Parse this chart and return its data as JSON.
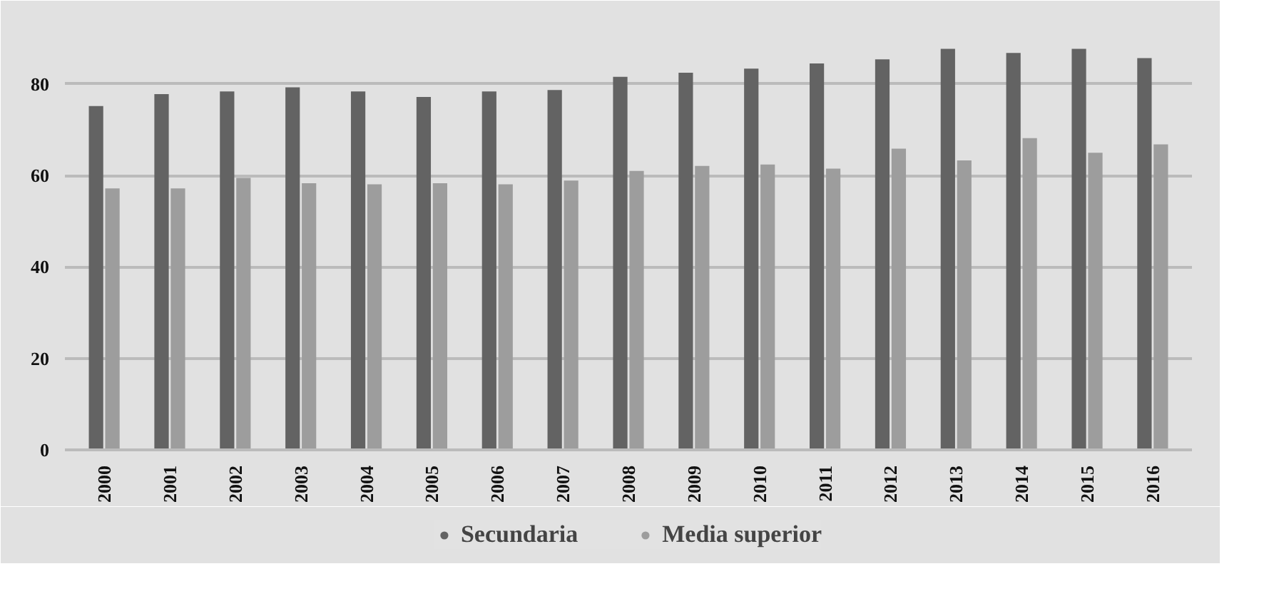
{
  "chart_data": {
    "type": "bar",
    "categories": [
      "2000",
      "2001",
      "2002",
      "2003",
      "2004",
      "2005",
      "2006",
      "2007",
      "2008",
      "2009",
      "2010",
      "2011",
      "2012",
      "2013",
      "2014",
      "2015",
      "2016"
    ],
    "series": [
      {
        "name": "Secundaria",
        "color": "#636363",
        "values": [
          75.2,
          77.8,
          78.4,
          79.3,
          78.4,
          77.2,
          78.4,
          78.7,
          81.6,
          82.5,
          83.4,
          84.5,
          85.4,
          87.7,
          86.8,
          87.7,
          85.7
        ]
      },
      {
        "name": "Media superior",
        "color": "#9d9d9d",
        "values": [
          57.2,
          57.2,
          59.5,
          58.3,
          58.1,
          58.3,
          58.1,
          58.9,
          61.0,
          62.1,
          62.4,
          61.5,
          65.9,
          63.3,
          68.2,
          65.0,
          66.8
        ]
      }
    ],
    "ylim": [
      0,
      92
    ],
    "yticks": [
      0,
      20,
      40,
      60,
      80
    ],
    "grid": "y",
    "legend": "bottom"
  }
}
